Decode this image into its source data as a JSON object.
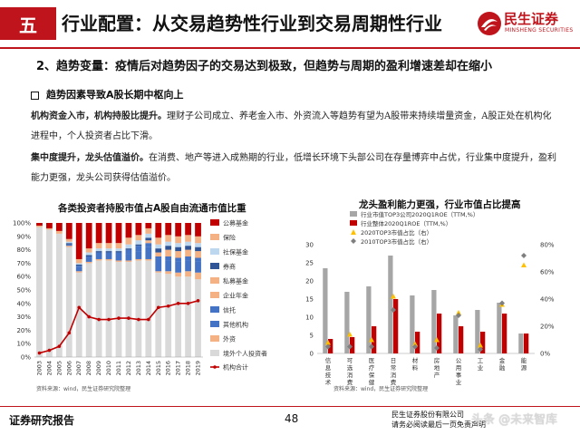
{
  "header": {
    "section": "五",
    "title": "行业配置：从交易趋势性行业到交易周期性行业",
    "logo_cn": "民生证券",
    "logo_en": "MINSHENG SECURITIES"
  },
  "subtitle": "2、趋势变量：疫情后对趋势因子的交易达到极致，但趋势与周期的盈利增速差却在缩小",
  "bullet": "趋势因素导致A股长期中枢向上",
  "para1": {
    "bold": "机构资金入市，机构持股比提升。",
    "text": "理财子公司成立、养老金入市、外资流入等趋势有望为A股带来持续增量资金，A股正处在机构化进程中，个人投资者占比下滑。"
  },
  "para2": {
    "bold": "集中度提升，龙头估值溢价。",
    "text": "在消费、地产等进入成熟期的行业，低增长环境下头部公司在存量博弈中占优，行业集中度提升，盈利能力更强，龙头公司获得估值溢价。"
  },
  "left_chart": {
    "title": "各类投资者持股市值占A股自由流通市值比重",
    "source": "资料来源：wind，民生证券研究院整理",
    "chart_data": {
      "type": "bar",
      "stacked": true,
      "categories": [
        "2003",
        "2004",
        "2005",
        "2006",
        "2007",
        "2008",
        "2009",
        "2010",
        "2011",
        "2012",
        "2013",
        "2014",
        "2015",
        "2016",
        "2017",
        "2018",
        "2019"
      ],
      "ylim": [
        0,
        100
      ],
      "yticks": [
        "0%",
        "10%",
        "20%",
        "30%",
        "40%",
        "50%",
        "60%",
        "70%",
        "80%",
        "90%",
        "100%"
      ],
      "series": [
        {
          "name": "境外个人投资者",
          "color": "#d9d9d9",
          "values": [
            97,
            95,
            92,
            82,
            63,
            70,
            72,
            72,
            71,
            71,
            72,
            72,
            63,
            62,
            60,
            60,
            58
          ]
        },
        {
          "name": "外资",
          "color": "#f4b183",
          "values": [
            0,
            0,
            0,
            1,
            1,
            1,
            1,
            1,
            1,
            1,
            1,
            1,
            1,
            2,
            3,
            4,
            5
          ]
        },
        {
          "name": "其他机构",
          "color": "#4472c4",
          "values": [
            0,
            0,
            0,
            1,
            3,
            3,
            3,
            3,
            4,
            5,
            6,
            9,
            9,
            8,
            8,
            8,
            8
          ]
        },
        {
          "name": "信托",
          "color": "#4472c4",
          "values": [
            0,
            0,
            0,
            0,
            1,
            1,
            2,
            2,
            2,
            3,
            4,
            3,
            2,
            3,
            3,
            3,
            3
          ]
        },
        {
          "name": "企业年金",
          "color": "#f4b183",
          "values": [
            0,
            0,
            0,
            0,
            0,
            0,
            0,
            0,
            0,
            0,
            0,
            1,
            1,
            2,
            2,
            2,
            2
          ]
        },
        {
          "name": "私募基金",
          "color": "#f4b183",
          "values": [
            0,
            0,
            0,
            0,
            0,
            0,
            0,
            0,
            0,
            0,
            0,
            1,
            2,
            3,
            3,
            3,
            3
          ]
        },
        {
          "name": "券商",
          "color": "#2f5597",
          "values": [
            0,
            0,
            0,
            1,
            1,
            1,
            1,
            1,
            1,
            1,
            1,
            2,
            3,
            3,
            3,
            3,
            3
          ]
        },
        {
          "name": "社保基金",
          "color": "#bdd7ee",
          "values": [
            0,
            0,
            0,
            1,
            1,
            2,
            2,
            2,
            2,
            3,
            3,
            3,
            3,
            3,
            3,
            3,
            3
          ]
        },
        {
          "name": "保险",
          "color": "#f4b183",
          "values": [
            1,
            1,
            2,
            2,
            3,
            3,
            4,
            4,
            4,
            5,
            4,
            4,
            5,
            5,
            5,
            5,
            5
          ]
        },
        {
          "name": "公募基金",
          "color": "#c00000",
          "values": [
            2,
            4,
            6,
            12,
            27,
            19,
            15,
            15,
            15,
            11,
            9,
            4,
            11,
            9,
            10,
            9,
            10
          ]
        }
      ],
      "line": {
        "name": "机构合计",
        "color": "#c00000",
        "values": [
          3,
          5,
          8,
          18,
          37,
          30,
          28,
          28,
          29,
          29,
          28,
          28,
          37,
          38,
          40,
          40,
          42
        ]
      }
    }
  },
  "right_chart": {
    "title": "龙头盈利能力更强，行业市值占比提高",
    "source": "资料来源：wind，民生证券研究院整理",
    "chart_data": {
      "type": "bar",
      "categories": [
        "信息技术",
        "可选消费",
        "医疗保健",
        "日常消费",
        "材料",
        "房地产",
        "公用事业",
        "工业",
        "金融",
        "能源"
      ],
      "ylim_left": [
        0,
        30
      ],
      "ylim_right": [
        0,
        80
      ],
      "yticks_left": [
        "0",
        "5",
        "10",
        "15",
        "20",
        "25",
        "30"
      ],
      "yticks_right": [
        "0%",
        "20%",
        "40%",
        "60%",
        "80%"
      ],
      "series": [
        {
          "name": "行业市值TOP3公司2020Q1ROE（TTM,%）",
          "color": "#a6a6a6",
          "axis": "left",
          "values": [
            23.5,
            17,
            18.5,
            27,
            16,
            17.5,
            10.5,
            12,
            14,
            5.5
          ]
        },
        {
          "name": "行业整体2020Q1ROE（TTM,%）",
          "color": "#c00000",
          "axis": "left",
          "values": [
            4,
            4.5,
            7.5,
            15,
            6,
            11,
            7.5,
            6,
            11,
            5.5
          ]
        },
        {
          "name": "2020TOP3市值占比（右）",
          "color": "#ffc000",
          "axis": "right",
          "marker": "triangle",
          "values": [
            8,
            14,
            10,
            42,
            7,
            10,
            30,
            6,
            36,
            65
          ]
        },
        {
          "name": "2010TOP3市值占比（右）",
          "color": "#7f7f7f",
          "axis": "right",
          "marker": "diamond",
          "values": [
            5,
            5,
            5,
            32,
            5,
            4,
            28,
            3,
            37,
            72
          ]
        }
      ]
    }
  },
  "footer": {
    "left": "证券研究报告",
    "page": "48",
    "right_line1": "民生证券股份有限公司",
    "right_line2": "请务必阅读最后一页免责声明",
    "watermark": "头条 @未来智库"
  }
}
